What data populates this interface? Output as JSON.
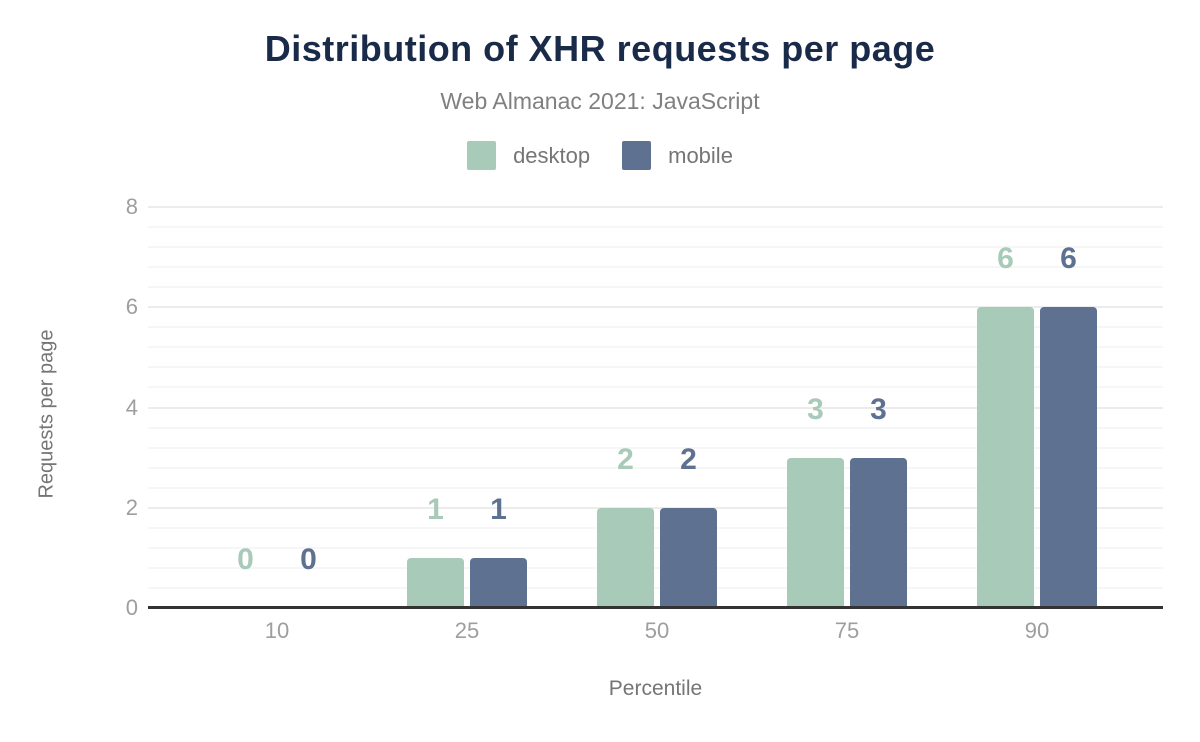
{
  "chart_data": {
    "type": "bar",
    "title": "Distribution of XHR requests per page",
    "subtitle": "Web Almanac 2021: JavaScript",
    "categories": [
      "10",
      "25",
      "50",
      "75",
      "90"
    ],
    "series": [
      {
        "name": "desktop",
        "color": "#a8cab8",
        "values": [
          0,
          1,
          2,
          3,
          6
        ]
      },
      {
        "name": "mobile",
        "color": "#5e7190",
        "values": [
          0,
          1,
          2,
          3,
          6
        ]
      }
    ],
    "xlabel": "Percentile",
    "ylabel": "Requests per page",
    "ylim": [
      0,
      8
    ],
    "y_ticks": [
      0,
      2,
      4,
      6,
      8
    ],
    "minor_grid_step": 0.4,
    "grid": true,
    "legend_position": "top",
    "data_labels": true
  },
  "colors": {
    "title": "#1a2b49",
    "subtitle": "#808080",
    "axis_title": "#757575",
    "tick_label": "#9e9e9e",
    "legend_label": "#757575",
    "axis_line": "#333333",
    "grid_minor": "#f6f6f6",
    "grid_major": "#ececec",
    "background": "#ffffff"
  }
}
